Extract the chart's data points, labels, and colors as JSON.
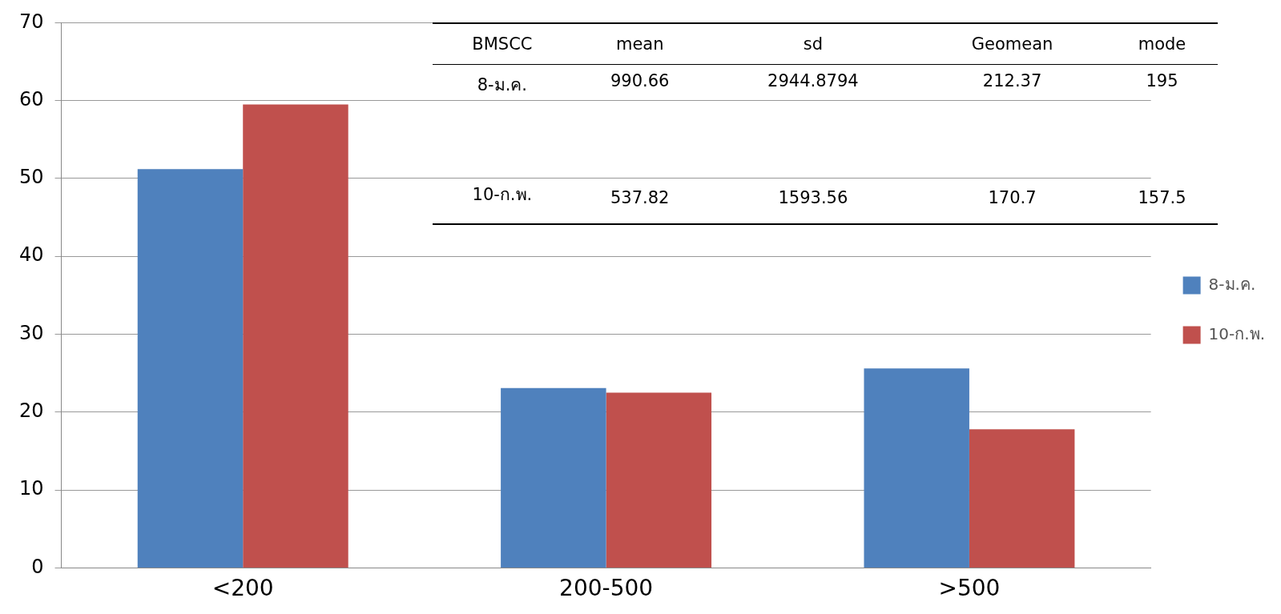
{
  "chart_data": {
    "type": "bar",
    "categories": [
      "<200",
      "200-500",
      ">500"
    ],
    "series": [
      {
        "name": "8-ม.ค.",
        "color": "#4f81bd",
        "values": [
          51.2,
          23.1,
          25.6
        ]
      },
      {
        "name": "10-ก.พ.",
        "color": "#c0504d",
        "values": [
          59.5,
          22.5,
          17.8
        ]
      }
    ],
    "ylim": [
      0,
      70
    ],
    "yticks": [
      0,
      10,
      20,
      30,
      40,
      50,
      60,
      70
    ],
    "grid": "y",
    "legend": "right",
    "annotations": [
      "BMSCC",
      "mean",
      "sd",
      "Geomean",
      "mode",
      "8-ม.ค.",
      "990.66",
      "2944.8794",
      "212.37",
      "195",
      "10-ก.พ.",
      "537.82",
      "1593.56",
      "170.7",
      "157.5"
    ]
  }
}
